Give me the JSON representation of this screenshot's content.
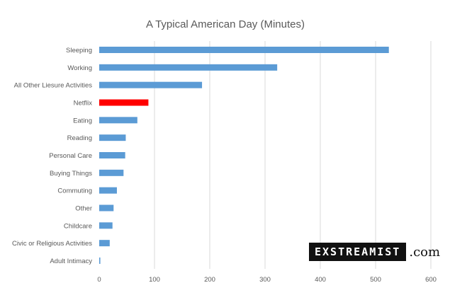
{
  "chart_data": {
    "type": "bar",
    "orientation": "horizontal",
    "title": "A Typical American Day (Minutes)",
    "categories": [
      "Sleeping",
      "Working",
      "All Other Liesure Activities",
      "Netflix",
      "Eating",
      "Reading",
      "Personal Care",
      "Buying Things",
      "Commuting",
      "Other",
      "Childcare",
      "Civic or Religious Activities",
      "Adult Intimacy"
    ],
    "values": [
      524,
      322,
      186,
      89,
      69,
      48,
      47,
      44,
      32,
      26,
      24,
      19,
      2
    ],
    "highlight_category": "Netflix",
    "colors": {
      "bar": "#5b9bd5",
      "highlight": "#ff0000"
    },
    "xlim": [
      0,
      600
    ],
    "xticks": [
      0,
      100,
      200,
      300,
      400,
      500,
      600
    ],
    "grid": true,
    "legend": "none"
  },
  "watermark": {
    "brand": "EXSTREAMIST",
    "suffix": ".com"
  }
}
